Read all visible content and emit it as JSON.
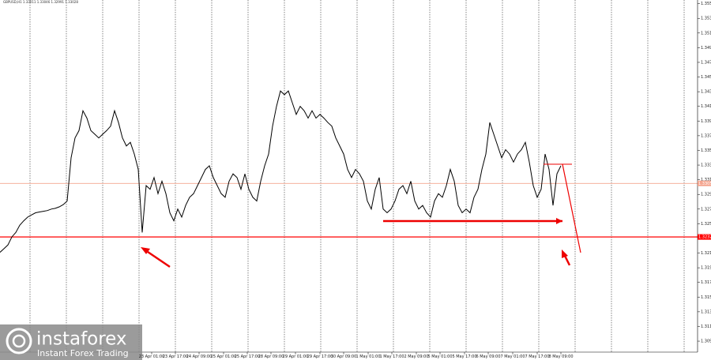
{
  "header": "GBPUSD,H1  1.33011 1.33046 1.32991 1.33028",
  "logo": {
    "name": "instaforex",
    "tagline": "Instant Forex Trading"
  },
  "chart_data": {
    "type": "line",
    "color": "#000000",
    "values": [
      1.3211,
      1.3216,
      1.3221,
      1.3232,
      1.3238,
      1.3248,
      1.3254,
      1.3259,
      1.3262,
      1.3265,
      1.3266,
      1.3267,
      1.3268,
      1.327,
      1.3271,
      1.3273,
      1.3276,
      1.3281,
      1.334,
      1.3367,
      1.3377,
      1.3404,
      1.3394,
      1.3377,
      1.3372,
      1.3367,
      1.3372,
      1.3377,
      1.3383,
      1.3404,
      1.3388,
      1.3367,
      1.3356,
      1.3361,
      1.3345,
      1.3324,
      1.3238,
      1.3302,
      1.3297,
      1.3313,
      1.3291,
      1.3308,
      1.3291,
      1.3265,
      1.3254,
      1.327,
      1.3259,
      1.3275,
      1.3286,
      1.3291,
      1.3302,
      1.3313,
      1.3324,
      1.3329,
      1.3313,
      1.3302,
      1.3291,
      1.3286,
      1.3308,
      1.3318,
      1.3313,
      1.3297,
      1.3318,
      1.3297,
      1.3286,
      1.3281,
      1.3308,
      1.3329,
      1.3345,
      1.3383,
      1.341,
      1.3431,
      1.3426,
      1.3431,
      1.3415,
      1.3399,
      1.341,
      1.3404,
      1.3394,
      1.3404,
      1.3394,
      1.3399,
      1.3394,
      1.3388,
      1.3383,
      1.3367,
      1.3356,
      1.3345,
      1.3324,
      1.3313,
      1.3324,
      1.3318,
      1.3308,
      1.3281,
      1.327,
      1.3297,
      1.3313,
      1.327,
      1.3265,
      1.327,
      1.3281,
      1.3297,
      1.3302,
      1.3291,
      1.3308,
      1.3281,
      1.327,
      1.3275,
      1.3265,
      1.3259,
      1.3281,
      1.3291,
      1.3286,
      1.3302,
      1.3324,
      1.3308,
      1.3275,
      1.3265,
      1.327,
      1.3265,
      1.3286,
      1.3297,
      1.3324,
      1.3345,
      1.3388,
      1.3372,
      1.3356,
      1.334,
      1.3351,
      1.3345,
      1.3334,
      1.3345,
      1.3351,
      1.3361,
      1.3334,
      1.3302,
      1.3286,
      1.3297,
      1.3345,
      1.3324,
      1.3275,
      1.3318,
      1.3329
    ],
    "xlim": [
      0,
      176.6
    ],
    "xticks": [
      {
        "value": 38.4,
        "label": "23 Apr 01:00"
      },
      {
        "value": 44.4,
        "label": "23 Apr 17:00"
      },
      {
        "value": 50.4,
        "label": "24 Apr 09:00"
      },
      {
        "value": 56.6,
        "label": "25 Apr 01:00"
      },
      {
        "value": 62.6,
        "label": "25 Apr 17:00"
      },
      {
        "value": 68.6,
        "label": "28 Apr 09:00"
      },
      {
        "value": 74.8,
        "label": "29 Apr 01:00"
      },
      {
        "value": 81,
        "label": "29 Apr 17:00"
      },
      {
        "value": 87,
        "label": "30 Apr 09:00"
      },
      {
        "value": 93.2,
        "label": "1 May 01:00"
      },
      {
        "value": 99.2,
        "label": "1 May 17:00"
      },
      {
        "value": 105.4,
        "label": "2 May 09:00"
      },
      {
        "value": 111.4,
        "label": "5 May 01:00"
      },
      {
        "value": 117.6,
        "label": "5 May 17:00"
      },
      {
        "value": 123.6,
        "label": "6 May 09:00"
      },
      {
        "value": 129.8,
        "label": "7 May 01:00"
      },
      {
        "value": 136,
        "label": "7 May 17:00"
      },
      {
        "value": 142,
        "label": "8 May 09:00"
      }
    ],
    "ylim": [
      1.3075,
      1.3555
    ],
    "yticks": [
      1.309,
      1.311,
      1.313,
      1.315,
      1.317,
      1.319,
      1.321,
      1.323,
      1.325,
      1.327,
      1.329,
      1.331,
      1.333,
      1.335,
      1.337,
      1.339,
      1.341,
      1.343,
      1.345,
      1.347,
      1.349,
      1.351,
      1.353,
      1.355
    ],
    "levels": [
      {
        "value": 1.3305,
        "color": "#f4a58f"
      },
      {
        "value": 1.3232,
        "color": "#ff0000"
      }
    ]
  }
}
